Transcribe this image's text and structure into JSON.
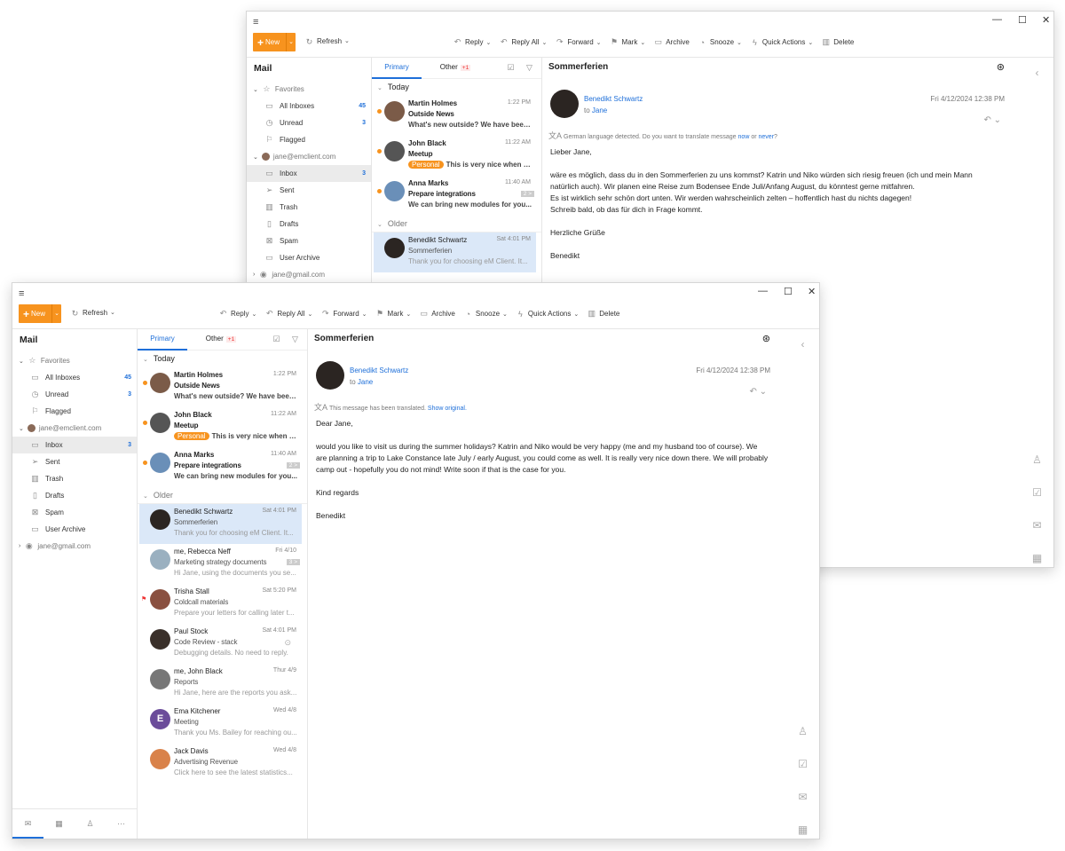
{
  "app": {
    "window_controls": {
      "minimize": "—",
      "maximize": "☐",
      "close": "✕"
    },
    "toolbar": {
      "new": "New",
      "refresh": "Refresh",
      "actions": [
        {
          "label": "Reply",
          "icon": "reply-icon",
          "glyph": "↶",
          "dropdown": true
        },
        {
          "label": "Reply All",
          "icon": "reply-all-icon",
          "glyph": "↶",
          "dropdown": true
        },
        {
          "label": "Forward",
          "icon": "forward-icon",
          "glyph": "↷",
          "dropdown": true
        },
        {
          "label": "Mark",
          "icon": "flag-icon",
          "glyph": "⚑",
          "dropdown": true
        },
        {
          "label": "Archive",
          "icon": "archive-icon",
          "glyph": "▭",
          "dropdown": false
        },
        {
          "label": "Snooze",
          "icon": "snooze-icon",
          "glyph": "◔",
          "dropdown": true
        },
        {
          "label": "Quick Actions",
          "icon": "lightning-icon",
          "glyph": "ϟ",
          "dropdown": true
        },
        {
          "label": "Delete",
          "icon": "trash-icon",
          "glyph": "▥",
          "dropdown": false
        }
      ]
    },
    "sidebar": {
      "title": "Mail",
      "favorites": "Favorites",
      "favorite_items": [
        {
          "label": "All Inboxes",
          "count": "45",
          "icon": "inbox-icon",
          "glyph": "▭"
        },
        {
          "label": "Unread",
          "count": "3",
          "icon": "clock-icon",
          "glyph": "◷"
        },
        {
          "label": "Flagged",
          "count": null,
          "icon": "flag-icon",
          "glyph": "⚐"
        }
      ],
      "account": "jane@emclient.com",
      "folders": [
        {
          "label": "Inbox",
          "count": "3",
          "icon": "inbox-icon",
          "glyph": "▭",
          "selected": true
        },
        {
          "label": "Sent",
          "count": null,
          "icon": "send-icon",
          "glyph": "➢"
        },
        {
          "label": "Trash",
          "count": null,
          "icon": "trash-icon",
          "glyph": "▥"
        },
        {
          "label": "Drafts",
          "count": null,
          "icon": "draft-icon",
          "glyph": "▯"
        },
        {
          "label": "Spam",
          "count": null,
          "icon": "spam-icon",
          "glyph": "⊠"
        },
        {
          "label": "User Archive",
          "count": null,
          "icon": "archive-icon",
          "glyph": "▭"
        }
      ],
      "account2": "jane@gmail.com"
    },
    "bottom_nav": [
      {
        "name": "mail",
        "glyph": "✉",
        "active": true
      },
      {
        "name": "calendar",
        "glyph": "▦",
        "active": false
      },
      {
        "name": "contacts",
        "glyph": "♙",
        "active": false
      },
      {
        "name": "more",
        "glyph": "···",
        "active": false
      }
    ],
    "list": {
      "tabs": [
        "Primary",
        "Other"
      ],
      "other_badge": "+1",
      "groups": [
        {
          "label": "Today",
          "items": [
            {
              "from": "Martin Holmes",
              "time": "1:22 PM",
              "subject": "Outside News",
              "preview": "What's new outside? We have been...",
              "unread": true,
              "avatar": "#7b5b48"
            },
            {
              "from": "John Black",
              "time": "11:22 AM",
              "subject": "Meetup",
              "tag": "Personal",
              "preview": "This is very nice when you...",
              "unread": true,
              "avatar": "#555555"
            },
            {
              "from": "Anna Marks",
              "time": "11:40 AM",
              "subject": "Prepare integrations",
              "thread": "2 >",
              "preview": "We can bring new modules for you...",
              "unread": true,
              "avatar": "#6a8fb8"
            }
          ]
        },
        {
          "label": "Older",
          "items": [
            {
              "from": "Benedikt Schwartz",
              "time": "Sat 4:01 PM",
              "subject": "Sommerferien",
              "preview": "Thank you for choosing eM Client. It...",
              "selected": true,
              "avatar": "#2b2522"
            },
            {
              "from": "me, Rebecca Neff",
              "time": "Fri 4/10",
              "subject": "Marketing strategy documents",
              "thread": "3 >",
              "preview": "Hi Jane, using the documents you se...",
              "avatar": "#9ab0c0"
            },
            {
              "from": "Trisha Stall",
              "time": "Sat 5:20 PM",
              "subject": "Coldcall materials",
              "preview": "Prepare your letters for calling later t...",
              "flagged": true,
              "avatar": "#8a5040"
            },
            {
              "from": "Paul Stock",
              "time": "Sat 4:01 PM",
              "subject": "Code Review - stack",
              "preview": "Debugging details. No need to reply.",
              "snoozed": true,
              "avatar": "#3a302a"
            },
            {
              "from": "me, John Black",
              "time": "Thur 4/9",
              "subject": "Reports",
              "preview": "Hi Jane, here are the reports you ask...",
              "avatar": "#777777"
            },
            {
              "from": "Ema Kitchener",
              "time": "Wed 4/8",
              "subject": "Meeting",
              "preview": "Thank you Ms. Bailey for reaching ou...",
              "avatar": "#6b4c9a",
              "initial": "E"
            },
            {
              "from": "Jack Davis",
              "time": "Wed 4/8",
              "subject": "Advertising Revenue",
              "preview": "Click here to see the latest statistics...",
              "avatar": "#d9824a"
            }
          ]
        }
      ]
    },
    "message": {
      "subject": "Sommerferien",
      "sender": "Benedikt Schwartz",
      "to_prefix": "to",
      "to": "Jane",
      "date": "Fri 4/12/2024 12:38 PM"
    }
  },
  "windows": [
    {
      "banner": {
        "text": "German language detected. Do you want to translate message",
        "link1": "now",
        "mid": "or",
        "link2": "never",
        "end": "?"
      },
      "body": [
        [
          "Lieber Jane,"
        ],
        [
          "wäre es möglich, dass du in den Sommerferien zu uns kommst? Katrin und Niko würden sich riesig freuen (ich und mein Mann natürlich auch). Wir planen eine Reise zum Bodensee Ende Juli/Anfang August, du könntest gerne mitfahren.",
          "Es ist wirklich sehr schön dort unten. Wir werden wahrscheinlich zelten – hoffentlich hast du nichts dagegen!",
          "Schreib bald, ob das für dich in Frage kommt."
        ],
        [
          "Herzliche Grüße"
        ],
        [
          "Benedikt"
        ]
      ]
    },
    {
      "banner": {
        "text": "This message has been translated.",
        "link1": "Show original."
      },
      "body": [
        [
          "Dear Jane,"
        ],
        [
          "would you like to visit us during the summer holidays? Katrin and Niko would be very happy (me and my husband too of course). We are planning a trip to Lake Constance late July / early August, you could come as well. It is really very nice down there. We will probably camp out - hopefully you do not mind! Write soon if that is the case for you."
        ],
        [
          "Kind regards"
        ],
        [
          "Benedikt"
        ]
      ]
    }
  ],
  "colors": {
    "accent": "#1e6fd9",
    "new_button": "#f7931e",
    "selected_row": "#dbe8f8",
    "unread_dot": "#f7931e"
  }
}
